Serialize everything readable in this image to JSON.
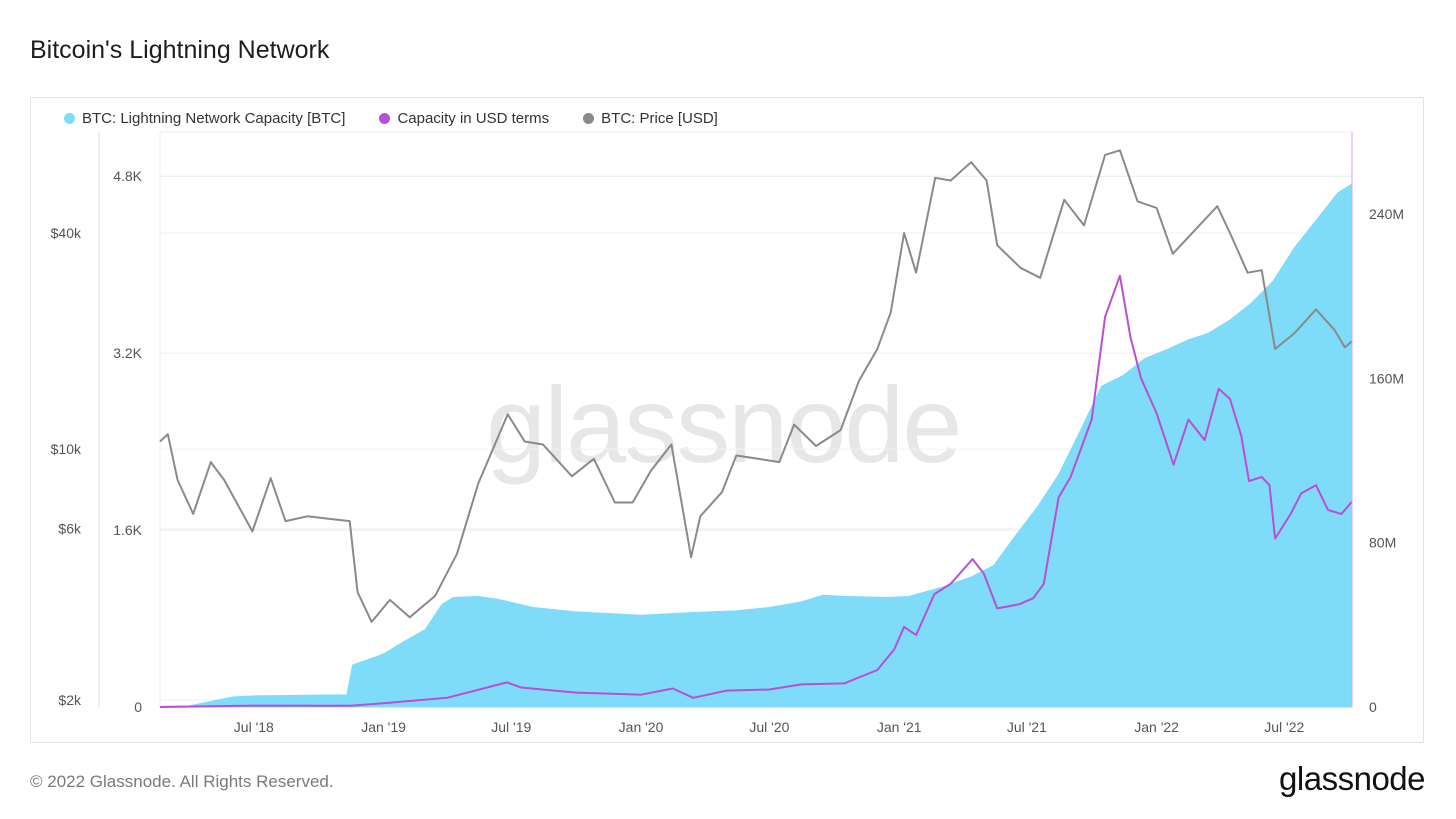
{
  "header": {
    "title": "Bitcoin's Lightning Network"
  },
  "watermark": "glassnode",
  "footer": {
    "copyright": "© 2022 Glassnode. All Rights Reserved.",
    "brand": "glassnode"
  },
  "colors": {
    "capacity_btc": "#7fdcf8",
    "capacity_usd": "#b94fd4",
    "price": "#8a8a8a",
    "grid": "#ececec"
  },
  "chart_data": {
    "type": "area",
    "title": "Bitcoin's Lightning Network",
    "legend": [
      "BTC: Lightning Network Capacity [BTC]",
      "Capacity in USD terms",
      "BTC: Price [USD]"
    ],
    "x_ticks": [
      "Jul '18",
      "Jan '19",
      "Jul '19",
      "Jan '20",
      "Jul '20",
      "Jan '21",
      "Jul '21",
      "Jan '22",
      "Jul '22"
    ],
    "x_tick_dates": [
      "2018-07-01",
      "2019-01-01",
      "2019-07-01",
      "2020-01-01",
      "2020-07-01",
      "2021-01-01",
      "2021-07-01",
      "2022-01-01",
      "2022-07-01"
    ],
    "x_range": [
      "2018-02-18",
      "2022-10-05"
    ],
    "y_left_price": {
      "label_ticks": [
        "$2k",
        "$6k",
        "$10k",
        "$40k"
      ],
      "values": [
        2000,
        6000,
        10000,
        40000
      ],
      "scale": "log"
    },
    "y_left_btc": {
      "ticks": [
        "0",
        "1.6K",
        "3.2K",
        "4.8K"
      ],
      "values": [
        0,
        1600,
        3200,
        4800
      ],
      "range": [
        0,
        5200
      ]
    },
    "y_right_usd": {
      "ticks": [
        "0",
        "80M",
        "160M",
        "240M"
      ],
      "values": [
        0,
        80000000,
        160000000,
        240000000
      ],
      "range": [
        0,
        280000000
      ]
    },
    "series": [
      {
        "name": "BTC: Lightning Network Capacity [BTC]",
        "axis": "btc",
        "points": [
          [
            "2018-02-18",
            5
          ],
          [
            "2018-04-01",
            10
          ],
          [
            "2018-05-01",
            50
          ],
          [
            "2018-06-01",
            90
          ],
          [
            "2018-07-01",
            100
          ],
          [
            "2018-09-01",
            105
          ],
          [
            "2018-11-10",
            110
          ],
          [
            "2018-11-18",
            380
          ],
          [
            "2019-01-01",
            480
          ],
          [
            "2019-02-01",
            600
          ],
          [
            "2019-03-01",
            700
          ],
          [
            "2019-03-25",
            930
          ],
          [
            "2019-04-10",
            990
          ],
          [
            "2019-05-15",
            1000
          ],
          [
            "2019-06-15",
            970
          ],
          [
            "2019-08-01",
            900
          ],
          [
            "2019-10-01",
            860
          ],
          [
            "2020-01-01",
            830
          ],
          [
            "2020-03-01",
            850
          ],
          [
            "2020-05-15",
            870
          ],
          [
            "2020-07-01",
            900
          ],
          [
            "2020-08-15",
            950
          ],
          [
            "2020-09-15",
            1010
          ],
          [
            "2020-10-15",
            1000
          ],
          [
            "2020-12-15",
            990
          ],
          [
            "2021-01-15",
            1000
          ],
          [
            "2021-03-01",
            1080
          ],
          [
            "2021-04-15",
            1180
          ],
          [
            "2021-05-15",
            1280
          ],
          [
            "2021-06-15",
            1550
          ],
          [
            "2021-07-15",
            1800
          ],
          [
            "2021-08-15",
            2100
          ],
          [
            "2021-09-15",
            2500
          ],
          [
            "2021-10-15",
            2900
          ],
          [
            "2021-11-15",
            3000
          ],
          [
            "2021-12-15",
            3150
          ],
          [
            "2022-01-15",
            3230
          ],
          [
            "2022-02-15",
            3320
          ],
          [
            "2022-03-15",
            3380
          ],
          [
            "2022-04-15",
            3500
          ],
          [
            "2022-05-15",
            3650
          ],
          [
            "2022-06-15",
            3850
          ],
          [
            "2022-07-15",
            4150
          ],
          [
            "2022-08-15",
            4400
          ],
          [
            "2022-09-15",
            4650
          ],
          [
            "2022-10-05",
            4730
          ]
        ]
      },
      {
        "name": "Capacity in USD terms",
        "axis": "usd",
        "points": [
          [
            "2018-02-18",
            0
          ],
          [
            "2018-07-01",
            700000
          ],
          [
            "2018-11-15",
            650000
          ],
          [
            "2019-01-01",
            1800000
          ],
          [
            "2019-04-01",
            4500000
          ],
          [
            "2019-06-25",
            12000000
          ],
          [
            "2019-07-15",
            9500000
          ],
          [
            "2019-10-01",
            7000000
          ],
          [
            "2020-01-01",
            6000000
          ],
          [
            "2020-02-15",
            9000000
          ],
          [
            "2020-03-15",
            4500000
          ],
          [
            "2020-05-01",
            8000000
          ],
          [
            "2020-07-01",
            8500000
          ],
          [
            "2020-08-15",
            11000000
          ],
          [
            "2020-10-15",
            11500000
          ],
          [
            "2020-12-01",
            18000000
          ],
          [
            "2020-12-25",
            28000000
          ],
          [
            "2021-01-08",
            39000000
          ],
          [
            "2021-01-25",
            35000000
          ],
          [
            "2021-02-20",
            55000000
          ],
          [
            "2021-03-15",
            60000000
          ],
          [
            "2021-04-15",
            72000000
          ],
          [
            "2021-05-01",
            65000000
          ],
          [
            "2021-05-20",
            48000000
          ],
          [
            "2021-06-20",
            50000000
          ],
          [
            "2021-07-10",
            53000000
          ],
          [
            "2021-07-25",
            60000000
          ],
          [
            "2021-08-15",
            102000000
          ],
          [
            "2021-09-01",
            112000000
          ],
          [
            "2021-10-01",
            140000000
          ],
          [
            "2021-10-20",
            190000000
          ],
          [
            "2021-11-10",
            210000000
          ],
          [
            "2021-11-25",
            180000000
          ],
          [
            "2021-12-10",
            160000000
          ],
          [
            "2022-01-01",
            143000000
          ],
          [
            "2022-01-25",
            118000000
          ],
          [
            "2022-02-15",
            140000000
          ],
          [
            "2022-03-10",
            130000000
          ],
          [
            "2022-03-30",
            155000000
          ],
          [
            "2022-04-15",
            150000000
          ],
          [
            "2022-05-01",
            132000000
          ],
          [
            "2022-05-12",
            110000000
          ],
          [
            "2022-05-30",
            112000000
          ],
          [
            "2022-06-10",
            108000000
          ],
          [
            "2022-06-18",
            82000000
          ],
          [
            "2022-07-10",
            94000000
          ],
          [
            "2022-07-25",
            104000000
          ],
          [
            "2022-08-15",
            108000000
          ],
          [
            "2022-09-01",
            96000000
          ],
          [
            "2022-09-20",
            94000000
          ],
          [
            "2022-10-05",
            100000000
          ]
        ]
      },
      {
        "name": "BTC: Price [USD]",
        "axis": "price",
        "points": [
          [
            "2018-02-18",
            10500
          ],
          [
            "2018-03-01",
            11000
          ],
          [
            "2018-03-15",
            8200
          ],
          [
            "2018-04-06",
            6600
          ],
          [
            "2018-05-01",
            9200
          ],
          [
            "2018-05-20",
            8200
          ],
          [
            "2018-06-29",
            5900
          ],
          [
            "2018-07-25",
            8300
          ],
          [
            "2018-08-15",
            6300
          ],
          [
            "2018-09-15",
            6500
          ],
          [
            "2018-10-15",
            6400
          ],
          [
            "2018-11-14",
            6300
          ],
          [
            "2018-11-25",
            4000
          ],
          [
            "2018-12-15",
            3300
          ],
          [
            "2019-01-10",
            3800
          ],
          [
            "2019-02-07",
            3400
          ],
          [
            "2019-03-15",
            3900
          ],
          [
            "2019-04-15",
            5100
          ],
          [
            "2019-05-15",
            8000
          ],
          [
            "2019-06-26",
            12500
          ],
          [
            "2019-07-20",
            10500
          ],
          [
            "2019-08-15",
            10300
          ],
          [
            "2019-09-25",
            8400
          ],
          [
            "2019-10-26",
            9400
          ],
          [
            "2019-11-25",
            7100
          ],
          [
            "2019-12-20",
            7100
          ],
          [
            "2020-01-15",
            8700
          ],
          [
            "2020-02-13",
            10300
          ],
          [
            "2020-03-12",
            5000
          ],
          [
            "2020-03-25",
            6500
          ],
          [
            "2020-04-25",
            7600
          ],
          [
            "2020-05-15",
            9600
          ],
          [
            "2020-06-15",
            9400
          ],
          [
            "2020-07-15",
            9200
          ],
          [
            "2020-08-05",
            11700
          ],
          [
            "2020-09-05",
            10200
          ],
          [
            "2020-10-10",
            11300
          ],
          [
            "2020-11-05",
            15500
          ],
          [
            "2020-12-01",
            19000
          ],
          [
            "2020-12-20",
            24000
          ],
          [
            "2021-01-08",
            40000
          ],
          [
            "2021-01-25",
            31000
          ],
          [
            "2021-02-21",
            57000
          ],
          [
            "2021-03-15",
            56000
          ],
          [
            "2021-04-13",
            63000
          ],
          [
            "2021-05-05",
            56000
          ],
          [
            "2021-05-20",
            37000
          ],
          [
            "2021-06-22",
            32000
          ],
          [
            "2021-07-20",
            30000
          ],
          [
            "2021-08-23",
            49500
          ],
          [
            "2021-09-20",
            42000
          ],
          [
            "2021-10-20",
            66000
          ],
          [
            "2021-11-10",
            68000
          ],
          [
            "2021-12-05",
            49000
          ],
          [
            "2022-01-01",
            47000
          ],
          [
            "2022-01-24",
            35000
          ],
          [
            "2022-03-28",
            47500
          ],
          [
            "2022-04-15",
            40000
          ],
          [
            "2022-05-10",
            31000
          ],
          [
            "2022-05-30",
            31500
          ],
          [
            "2022-06-18",
            19000
          ],
          [
            "2022-07-15",
            21000
          ],
          [
            "2022-08-15",
            24500
          ],
          [
            "2022-09-10",
            21500
          ],
          [
            "2022-09-25",
            19200
          ],
          [
            "2022-10-05",
            20000
          ]
        ]
      }
    ]
  }
}
